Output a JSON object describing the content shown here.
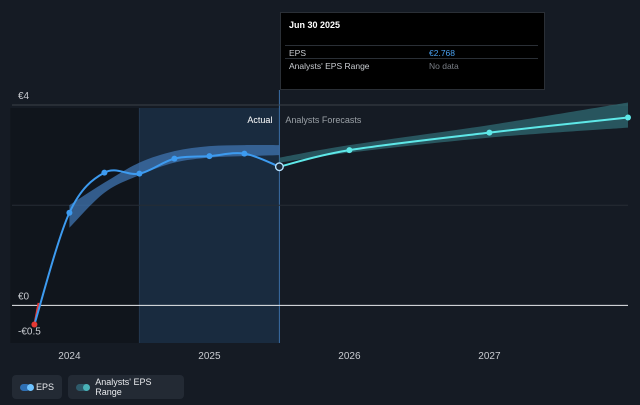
{
  "chart_data": {
    "type": "line",
    "y_ticks": [
      {
        "value": 4,
        "label": "€4"
      },
      {
        "value": 0,
        "label": "€0"
      },
      {
        "value": -0.5,
        "label": "-€0.5"
      }
    ],
    "x_ticks": [
      {
        "value": 2024,
        "label": "2024"
      },
      {
        "value": 2025,
        "label": "2025"
      },
      {
        "value": 2026,
        "label": "2026"
      },
      {
        "value": 2027,
        "label": "2027"
      }
    ],
    "xlim": [
      2023.59,
      2027.99
    ],
    "ylim": [
      -0.75,
      4.3
    ],
    "actual_label": "Actual",
    "forecast_label": "Analysts Forecasts",
    "divider_x": 2025.5,
    "highlight_start_x": 2024.5,
    "series": [
      {
        "name": "EPS",
        "color": "#3d9bf0",
        "points": [
          {
            "x": 2023.75,
            "y": -0.38
          },
          {
            "x": 2024.0,
            "y": 1.85
          },
          {
            "x": 2024.25,
            "y": 2.65
          },
          {
            "x": 2024.5,
            "y": 2.63
          },
          {
            "x": 2024.75,
            "y": 2.93
          },
          {
            "x": 2025.0,
            "y": 2.98
          },
          {
            "x": 2025.25,
            "y": 3.03
          },
          {
            "x": 2025.5,
            "y": 2.768
          }
        ]
      },
      {
        "name": "Analysts Forecasts",
        "color": "#5ee8e8",
        "points": [
          {
            "x": 2025.5,
            "y": 2.768
          },
          {
            "x": 2026.0,
            "y": 3.1
          },
          {
            "x": 2027.0,
            "y": 3.45
          },
          {
            "x": 2027.99,
            "y": 3.75
          }
        ]
      }
    ],
    "eps_range_actual": {
      "x": [
        2024.0,
        2024.25,
        2024.5,
        2024.75,
        2025.0,
        2025.25,
        2025.5
      ],
      "low": [
        1.55,
        2.25,
        2.6,
        2.85,
        2.95,
        2.98,
        3.0
      ],
      "high": [
        2.0,
        2.45,
        2.85,
        3.08,
        3.18,
        3.2,
        3.2
      ]
    },
    "eps_range_forecast": {
      "x": [
        2025.5,
        2026.0,
        2027.0,
        2027.99
      ],
      "low": [
        2.85,
        3.05,
        3.35,
        3.55
      ],
      "high": [
        2.95,
        3.2,
        3.6,
        4.05
      ]
    }
  },
  "tooltip": {
    "date": "Jun 30 2025",
    "eps_label": "EPS",
    "eps_value": "€2.768",
    "range_label": "Analysts' EPS Range",
    "range_value": "No data"
  },
  "legend": {
    "eps": "EPS",
    "range": "Analysts' EPS Range"
  },
  "colors": {
    "background": "#151b24",
    "eps": "#3d9bf0",
    "forecast": "#5ee8e8",
    "range_actual": "#3f74b0",
    "range_forecast": "#2f6a72",
    "highlight": "#1a2e44",
    "negative_segment": "#e53935"
  }
}
